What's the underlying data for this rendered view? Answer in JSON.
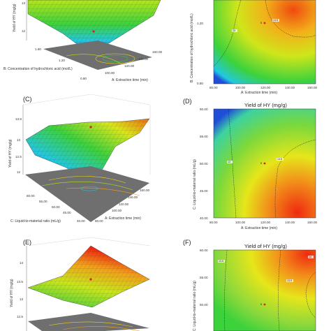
{
  "figure": {
    "panels": [
      {
        "id": "A",
        "label": "",
        "kind": "surface"
      },
      {
        "id": "B",
        "label": "",
        "kind": "contour"
      },
      {
        "id": "C",
        "label": "(C)",
        "kind": "surface"
      },
      {
        "id": "D",
        "label": "(D)",
        "kind": "contour"
      },
      {
        "id": "E",
        "label": "(E)",
        "kind": "surface"
      },
      {
        "id": "F",
        "label": "(F)",
        "kind": "contour"
      }
    ]
  },
  "colors": {
    "low": "#1f4fd8",
    "mid1": "#22c8e0",
    "mid2": "#3cd23c",
    "mid3": "#f2e61a",
    "high": "#ef2a10",
    "floor": "#6f6f6f"
  },
  "chart_data": [
    {
      "type": "surface",
      "panel": "A",
      "zlabel": "Yield of HY (mg/g)",
      "xlabel": "A: Extraction time (min)",
      "ylabel": "B: Concentration of hydrochloric acid (mol/L)",
      "x_ticks": [
        "100.00",
        "120.00",
        "140.00",
        "160.00"
      ],
      "y_ticks": [
        "0.80",
        "1.00",
        "1.20",
        "1.40",
        "1.60"
      ],
      "xlim": [
        80,
        160
      ],
      "ylim": [
        0.8,
        1.6
      ]
    },
    {
      "type": "contour",
      "panel": "B",
      "xlabel": "A: Extraction time (min)",
      "ylabel": "B: Concentration of hydrochloric acid (mol/L)",
      "x_ticks": [
        "80.00",
        "100.00",
        "120.00",
        "140.00",
        "160.00"
      ],
      "y_ticks": [
        "0.80",
        "1.20"
      ],
      "xlim": [
        80,
        160
      ],
      "ylim": [
        0.8,
        1.6
      ],
      "contour_labels": [
        "13",
        "13.5"
      ],
      "design_point": {
        "x": 120,
        "y": 1.2,
        "label": "5"
      }
    },
    {
      "type": "surface",
      "panel": "C",
      "zlabel": "Yield of HY (mg/g)",
      "xlabel": "A: Extraction time (min)",
      "ylabel": "C: Liquid-to-material ratio (mL/g)",
      "z_ticks": [
        "12",
        "12.5",
        "13",
        "13.5"
      ],
      "x_ticks": [
        "80.00",
        "100.00",
        "120.00",
        "140.00",
        "160.00"
      ],
      "y_ticks": [
        "40.00",
        "45.00",
        "50.00",
        "55.00",
        "60.00"
      ],
      "xlim": [
        80,
        160
      ],
      "ylim": [
        40,
        60
      ],
      "zlim": [
        11.5,
        13.6
      ]
    },
    {
      "type": "contour",
      "panel": "D",
      "title": "Yield of HY (mg/g)",
      "xlabel": "A: Extraction time (min)",
      "ylabel": "C: Liquid-to-material ratio (mL/g)",
      "x_ticks": [
        "80.00",
        "100.00",
        "120.00",
        "140.00",
        "160.00"
      ],
      "y_ticks": [
        "40.00",
        "45.00",
        "50.00",
        "55.00",
        "60.00"
      ],
      "xlim": [
        80,
        160
      ],
      "ylim": [
        40,
        60
      ],
      "contour_labels": [
        "13",
        "13.5"
      ],
      "design_point": {
        "x": 120,
        "y": 50,
        "label": "5"
      }
    },
    {
      "type": "surface",
      "panel": "E",
      "zlabel": "Yield of HY (mg/g)",
      "z_ticks": [
        "12.5",
        "13",
        "13.5",
        "14"
      ],
      "zlim": [
        12.3,
        14.1
      ]
    },
    {
      "type": "contour",
      "panel": "F",
      "title": "Yield of HY (mg/g)",
      "ylabel": "C: Liquid-to-material ratio (mL/g)",
      "y_ticks": [
        "50.00",
        "55.00",
        "60.00"
      ],
      "contour_labels": [
        "13.5",
        "14",
        "13.5"
      ],
      "design_point": {
        "label": "5"
      }
    }
  ]
}
